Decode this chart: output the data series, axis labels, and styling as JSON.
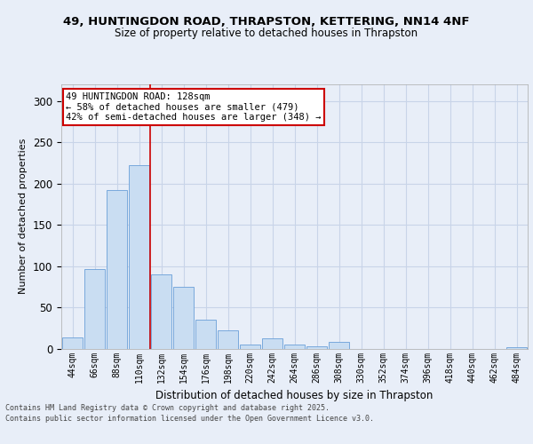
{
  "title_line1": "49, HUNTINGDON ROAD, THRAPSTON, KETTERING, NN14 4NF",
  "title_line2": "Size of property relative to detached houses in Thrapston",
  "xlabel": "Distribution of detached houses by size in Thrapston",
  "ylabel": "Number of detached properties",
  "categories": [
    "44sqm",
    "66sqm",
    "88sqm",
    "110sqm",
    "132sqm",
    "154sqm",
    "176sqm",
    "198sqm",
    "220sqm",
    "242sqm",
    "264sqm",
    "286sqm",
    "308sqm",
    "330sqm",
    "352sqm",
    "374sqm",
    "396sqm",
    "418sqm",
    "440sqm",
    "462sqm",
    "484sqm"
  ],
  "values": [
    13,
    96,
    192,
    222,
    90,
    75,
    35,
    22,
    5,
    12,
    5,
    3,
    8,
    0,
    0,
    0,
    0,
    0,
    0,
    0,
    2
  ],
  "bar_color": "#c9ddf2",
  "bar_edge_color": "#6a9fd8",
  "grid_color": "#c8d4e8",
  "background_color": "#e8eef8",
  "vline_x": 3.5,
  "vline_color": "#cc0000",
  "annotation_text": "49 HUNTINGDON ROAD: 128sqm\n← 58% of detached houses are smaller (479)\n42% of semi-detached houses are larger (348) →",
  "annotation_box_color": "#ffffff",
  "annotation_box_edge_color": "#cc0000",
  "ylim": [
    0,
    320
  ],
  "yticks": [
    0,
    50,
    100,
    150,
    200,
    250,
    300
  ],
  "footer_line1": "Contains HM Land Registry data © Crown copyright and database right 2025.",
  "footer_line2": "Contains public sector information licensed under the Open Government Licence v3.0.",
  "figsize": [
    6.0,
    5.0
  ],
  "dpi": 100
}
